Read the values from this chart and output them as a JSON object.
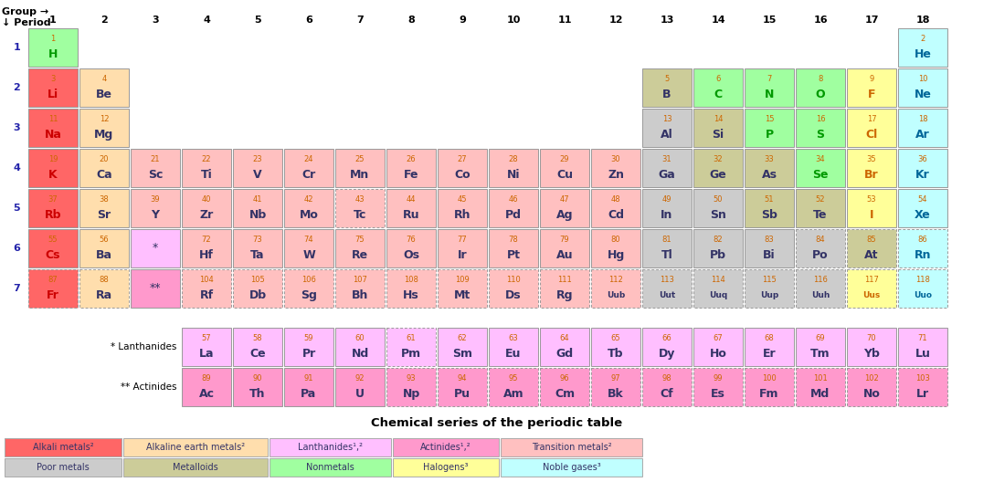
{
  "bg_color": "#ffffff",
  "title": "Chemical series of the periodic table",
  "elements": [
    {
      "num": 1,
      "sym": "H",
      "group": 1,
      "period": 1,
      "series": "nonmetal"
    },
    {
      "num": 2,
      "sym": "He",
      "group": 18,
      "period": 1,
      "series": "noble"
    },
    {
      "num": 3,
      "sym": "Li",
      "group": 1,
      "period": 2,
      "series": "alkali"
    },
    {
      "num": 4,
      "sym": "Be",
      "group": 2,
      "period": 2,
      "series": "alkaline"
    },
    {
      "num": 5,
      "sym": "B",
      "group": 13,
      "period": 2,
      "series": "metalloid"
    },
    {
      "num": 6,
      "sym": "C",
      "group": 14,
      "period": 2,
      "series": "nonmetal"
    },
    {
      "num": 7,
      "sym": "N",
      "group": 15,
      "period": 2,
      "series": "nonmetal"
    },
    {
      "num": 8,
      "sym": "O",
      "group": 16,
      "period": 2,
      "series": "nonmetal"
    },
    {
      "num": 9,
      "sym": "F",
      "group": 17,
      "period": 2,
      "series": "halogen"
    },
    {
      "num": 10,
      "sym": "Ne",
      "group": 18,
      "period": 2,
      "series": "noble"
    },
    {
      "num": 11,
      "sym": "Na",
      "group": 1,
      "period": 3,
      "series": "alkali"
    },
    {
      "num": 12,
      "sym": "Mg",
      "group": 2,
      "period": 3,
      "series": "alkaline"
    },
    {
      "num": 13,
      "sym": "Al",
      "group": 13,
      "period": 3,
      "series": "poor_metal"
    },
    {
      "num": 14,
      "sym": "Si",
      "group": 14,
      "period": 3,
      "series": "metalloid"
    },
    {
      "num": 15,
      "sym": "P",
      "group": 15,
      "period": 3,
      "series": "nonmetal"
    },
    {
      "num": 16,
      "sym": "S",
      "group": 16,
      "period": 3,
      "series": "nonmetal"
    },
    {
      "num": 17,
      "sym": "Cl",
      "group": 17,
      "period": 3,
      "series": "halogen"
    },
    {
      "num": 18,
      "sym": "Ar",
      "group": 18,
      "period": 3,
      "series": "noble"
    },
    {
      "num": 19,
      "sym": "K",
      "group": 1,
      "period": 4,
      "series": "alkali"
    },
    {
      "num": 20,
      "sym": "Ca",
      "group": 2,
      "period": 4,
      "series": "alkaline"
    },
    {
      "num": 21,
      "sym": "Sc",
      "group": 3,
      "period": 4,
      "series": "transition"
    },
    {
      "num": 22,
      "sym": "Ti",
      "group": 4,
      "period": 4,
      "series": "transition"
    },
    {
      "num": 23,
      "sym": "V",
      "group": 5,
      "period": 4,
      "series": "transition"
    },
    {
      "num": 24,
      "sym": "Cr",
      "group": 6,
      "period": 4,
      "series": "transition"
    },
    {
      "num": 25,
      "sym": "Mn",
      "group": 7,
      "period": 4,
      "series": "transition"
    },
    {
      "num": 26,
      "sym": "Fe",
      "group": 8,
      "period": 4,
      "series": "transition"
    },
    {
      "num": 27,
      "sym": "Co",
      "group": 9,
      "period": 4,
      "series": "transition"
    },
    {
      "num": 28,
      "sym": "Ni",
      "group": 10,
      "period": 4,
      "series": "transition"
    },
    {
      "num": 29,
      "sym": "Cu",
      "group": 11,
      "period": 4,
      "series": "transition"
    },
    {
      "num": 30,
      "sym": "Zn",
      "group": 12,
      "period": 4,
      "series": "transition"
    },
    {
      "num": 31,
      "sym": "Ga",
      "group": 13,
      "period": 4,
      "series": "poor_metal"
    },
    {
      "num": 32,
      "sym": "Ge",
      "group": 14,
      "period": 4,
      "series": "metalloid"
    },
    {
      "num": 33,
      "sym": "As",
      "group": 15,
      "period": 4,
      "series": "metalloid"
    },
    {
      "num": 34,
      "sym": "Se",
      "group": 16,
      "period": 4,
      "series": "nonmetal"
    },
    {
      "num": 35,
      "sym": "Br",
      "group": 17,
      "period": 4,
      "series": "halogen"
    },
    {
      "num": 36,
      "sym": "Kr",
      "group": 18,
      "period": 4,
      "series": "noble"
    },
    {
      "num": 37,
      "sym": "Rb",
      "group": 1,
      "period": 5,
      "series": "alkali"
    },
    {
      "num": 38,
      "sym": "Sr",
      "group": 2,
      "period": 5,
      "series": "alkaline"
    },
    {
      "num": 39,
      "sym": "Y",
      "group": 3,
      "period": 5,
      "series": "transition"
    },
    {
      "num": 40,
      "sym": "Zr",
      "group": 4,
      "period": 5,
      "series": "transition"
    },
    {
      "num": 41,
      "sym": "Nb",
      "group": 5,
      "period": 5,
      "series": "transition"
    },
    {
      "num": 42,
      "sym": "Mo",
      "group": 6,
      "period": 5,
      "series": "transition"
    },
    {
      "num": 43,
      "sym": "Tc",
      "group": 7,
      "period": 5,
      "series": "transition"
    },
    {
      "num": 44,
      "sym": "Ru",
      "group": 8,
      "period": 5,
      "series": "transition"
    },
    {
      "num": 45,
      "sym": "Rh",
      "group": 9,
      "period": 5,
      "series": "transition"
    },
    {
      "num": 46,
      "sym": "Pd",
      "group": 10,
      "period": 5,
      "series": "transition"
    },
    {
      "num": 47,
      "sym": "Ag",
      "group": 11,
      "period": 5,
      "series": "transition"
    },
    {
      "num": 48,
      "sym": "Cd",
      "group": 12,
      "period": 5,
      "series": "transition"
    },
    {
      "num": 49,
      "sym": "In",
      "group": 13,
      "period": 5,
      "series": "poor_metal"
    },
    {
      "num": 50,
      "sym": "Sn",
      "group": 14,
      "period": 5,
      "series": "poor_metal"
    },
    {
      "num": 51,
      "sym": "Sb",
      "group": 15,
      "period": 5,
      "series": "metalloid"
    },
    {
      "num": 52,
      "sym": "Te",
      "group": 16,
      "period": 5,
      "series": "metalloid"
    },
    {
      "num": 53,
      "sym": "I",
      "group": 17,
      "period": 5,
      "series": "halogen"
    },
    {
      "num": 54,
      "sym": "Xe",
      "group": 18,
      "period": 5,
      "series": "noble"
    },
    {
      "num": 55,
      "sym": "Cs",
      "group": 1,
      "period": 6,
      "series": "alkali"
    },
    {
      "num": 56,
      "sym": "Ba",
      "group": 2,
      "period": 6,
      "series": "alkaline"
    },
    {
      "num": 72,
      "sym": "Hf",
      "group": 4,
      "period": 6,
      "series": "transition"
    },
    {
      "num": 73,
      "sym": "Ta",
      "group": 5,
      "period": 6,
      "series": "transition"
    },
    {
      "num": 74,
      "sym": "W",
      "group": 6,
      "period": 6,
      "series": "transition"
    },
    {
      "num": 75,
      "sym": "Re",
      "group": 7,
      "period": 6,
      "series": "transition"
    },
    {
      "num": 76,
      "sym": "Os",
      "group": 8,
      "period": 6,
      "series": "transition"
    },
    {
      "num": 77,
      "sym": "Ir",
      "group": 9,
      "period": 6,
      "series": "transition"
    },
    {
      "num": 78,
      "sym": "Pt",
      "group": 10,
      "period": 6,
      "series": "transition"
    },
    {
      "num": 79,
      "sym": "Au",
      "group": 11,
      "period": 6,
      "series": "transition"
    },
    {
      "num": 80,
      "sym": "Hg",
      "group": 12,
      "period": 6,
      "series": "transition"
    },
    {
      "num": 81,
      "sym": "Tl",
      "group": 13,
      "period": 6,
      "series": "poor_metal"
    },
    {
      "num": 82,
      "sym": "Pb",
      "group": 14,
      "period": 6,
      "series": "poor_metal"
    },
    {
      "num": 83,
      "sym": "Bi",
      "group": 15,
      "period": 6,
      "series": "poor_metal"
    },
    {
      "num": 84,
      "sym": "Po",
      "group": 16,
      "period": 6,
      "series": "poor_metal"
    },
    {
      "num": 85,
      "sym": "At",
      "group": 17,
      "period": 6,
      "series": "metalloid"
    },
    {
      "num": 86,
      "sym": "Rn",
      "group": 18,
      "period": 6,
      "series": "noble"
    },
    {
      "num": 87,
      "sym": "Fr",
      "group": 1,
      "period": 7,
      "series": "alkali"
    },
    {
      "num": 88,
      "sym": "Ra",
      "group": 2,
      "period": 7,
      "series": "alkaline"
    },
    {
      "num": 104,
      "sym": "Rf",
      "group": 4,
      "period": 7,
      "series": "transition"
    },
    {
      "num": 105,
      "sym": "Db",
      "group": 5,
      "period": 7,
      "series": "transition"
    },
    {
      "num": 106,
      "sym": "Sg",
      "group": 6,
      "period": 7,
      "series": "transition"
    },
    {
      "num": 107,
      "sym": "Bh",
      "group": 7,
      "period": 7,
      "series": "transition"
    },
    {
      "num": 108,
      "sym": "Hs",
      "group": 8,
      "period": 7,
      "series": "transition"
    },
    {
      "num": 109,
      "sym": "Mt",
      "group": 9,
      "period": 7,
      "series": "transition"
    },
    {
      "num": 110,
      "sym": "Ds",
      "group": 10,
      "period": 7,
      "series": "transition"
    },
    {
      "num": 111,
      "sym": "Rg",
      "group": 11,
      "period": 7,
      "series": "transition"
    },
    {
      "num": 112,
      "sym": "Uub",
      "group": 12,
      "period": 7,
      "series": "transition"
    },
    {
      "num": 113,
      "sym": "Uut",
      "group": 13,
      "period": 7,
      "series": "poor_metal"
    },
    {
      "num": 114,
      "sym": "Uuq",
      "group": 14,
      "period": 7,
      "series": "poor_metal"
    },
    {
      "num": 115,
      "sym": "Uup",
      "group": 15,
      "period": 7,
      "series": "poor_metal"
    },
    {
      "num": 116,
      "sym": "Uuh",
      "group": 16,
      "period": 7,
      "series": "poor_metal"
    },
    {
      "num": 117,
      "sym": "Uus",
      "group": 17,
      "period": 7,
      "series": "halogen"
    },
    {
      "num": 118,
      "sym": "Uuo",
      "group": 18,
      "period": 7,
      "series": "noble"
    },
    {
      "num": 57,
      "sym": "La",
      "group": 4,
      "period": 9,
      "series": "lanthanide"
    },
    {
      "num": 58,
      "sym": "Ce",
      "group": 5,
      "period": 9,
      "series": "lanthanide"
    },
    {
      "num": 59,
      "sym": "Pr",
      "group": 6,
      "period": 9,
      "series": "lanthanide"
    },
    {
      "num": 60,
      "sym": "Nd",
      "group": 7,
      "period": 9,
      "series": "lanthanide"
    },
    {
      "num": 61,
      "sym": "Pm",
      "group": 8,
      "period": 9,
      "series": "lanthanide"
    },
    {
      "num": 62,
      "sym": "Sm",
      "group": 9,
      "period": 9,
      "series": "lanthanide"
    },
    {
      "num": 63,
      "sym": "Eu",
      "group": 10,
      "period": 9,
      "series": "lanthanide"
    },
    {
      "num": 64,
      "sym": "Gd",
      "group": 11,
      "period": 9,
      "series": "lanthanide"
    },
    {
      "num": 65,
      "sym": "Tb",
      "group": 12,
      "period": 9,
      "series": "lanthanide"
    },
    {
      "num": 66,
      "sym": "Dy",
      "group": 13,
      "period": 9,
      "series": "lanthanide"
    },
    {
      "num": 67,
      "sym": "Ho",
      "group": 14,
      "period": 9,
      "series": "lanthanide"
    },
    {
      "num": 68,
      "sym": "Er",
      "group": 15,
      "period": 9,
      "series": "lanthanide"
    },
    {
      "num": 69,
      "sym": "Tm",
      "group": 16,
      "period": 9,
      "series": "lanthanide"
    },
    {
      "num": 70,
      "sym": "Yb",
      "group": 17,
      "period": 9,
      "series": "lanthanide"
    },
    {
      "num": 71,
      "sym": "Lu",
      "group": 18,
      "period": 9,
      "series": "lanthanide"
    },
    {
      "num": 89,
      "sym": "Ac",
      "group": 4,
      "period": 10,
      "series": "actinide"
    },
    {
      "num": 90,
      "sym": "Th",
      "group": 5,
      "period": 10,
      "series": "actinide"
    },
    {
      "num": 91,
      "sym": "Pa",
      "group": 6,
      "period": 10,
      "series": "actinide"
    },
    {
      "num": 92,
      "sym": "U",
      "group": 7,
      "period": 10,
      "series": "actinide"
    },
    {
      "num": 93,
      "sym": "Np",
      "group": 8,
      "period": 10,
      "series": "actinide"
    },
    {
      "num": 94,
      "sym": "Pu",
      "group": 9,
      "period": 10,
      "series": "actinide"
    },
    {
      "num": 95,
      "sym": "Am",
      "group": 10,
      "period": 10,
      "series": "actinide"
    },
    {
      "num": 96,
      "sym": "Cm",
      "group": 11,
      "period": 10,
      "series": "actinide"
    },
    {
      "num": 97,
      "sym": "Bk",
      "group": 12,
      "period": 10,
      "series": "actinide"
    },
    {
      "num": 98,
      "sym": "Cf",
      "group": 13,
      "period": 10,
      "series": "actinide"
    },
    {
      "num": 99,
      "sym": "Es",
      "group": 14,
      "period": 10,
      "series": "actinide"
    },
    {
      "num": 100,
      "sym": "Fm",
      "group": 15,
      "period": 10,
      "series": "actinide"
    },
    {
      "num": 101,
      "sym": "Md",
      "group": 16,
      "period": 10,
      "series": "actinide"
    },
    {
      "num": 102,
      "sym": "No",
      "group": 17,
      "period": 10,
      "series": "actinide"
    },
    {
      "num": 103,
      "sym": "Lr",
      "group": 18,
      "period": 10,
      "series": "actinide"
    }
  ],
  "series_colors": {
    "alkali": "#ff6666",
    "alkaline": "#ffdead",
    "lanthanide": "#ffbfff",
    "actinide": "#ff99cc",
    "transition": "#ffc0c0",
    "poor_metal": "#cccccc",
    "metalloid": "#cccc99",
    "nonmetal": "#a0ffa0",
    "halogen": "#ffff99",
    "noble": "#c0ffff"
  },
  "sym_color_map": {
    "alkali": "#cc0000",
    "alkaline": "#333366",
    "lanthanide": "#333366",
    "actinide": "#333366",
    "transition": "#333366",
    "poor_metal": "#333366",
    "metalloid": "#333366",
    "nonmetal": "#009900",
    "halogen": "#cc6600",
    "noble": "#006699"
  },
  "dashed_elements": [
    43,
    61,
    84,
    85,
    86,
    87,
    88,
    93,
    94,
    95,
    96,
    97,
    98,
    99,
    100,
    101,
    102,
    103,
    104,
    105,
    106,
    107,
    108,
    109,
    110,
    111,
    112,
    113,
    114,
    115,
    116,
    117,
    118
  ],
  "legend_items": [
    {
      "label": "Alkali metals²",
      "color": "#ff6666",
      "row": 0,
      "col": 0
    },
    {
      "label": "Alkaline earth metals²",
      "color": "#ffdead",
      "row": 0,
      "col": 1
    },
    {
      "label": "Lanthanides¹,²",
      "color": "#ffbfff",
      "row": 0,
      "col": 2
    },
    {
      "label": "Actinides¹,²",
      "color": "#ff99cc",
      "row": 0,
      "col": 3
    },
    {
      "label": "Transition metals²",
      "color": "#ffc0c0",
      "row": 0,
      "col": 4
    },
    {
      "label": "Poor metals",
      "color": "#cccccc",
      "row": 1,
      "col": 0
    },
    {
      "label": "Metalloids",
      "color": "#cccc99",
      "row": 1,
      "col": 1
    },
    {
      "label": "Nonmetals",
      "color": "#a0ffa0",
      "row": 1,
      "col": 2
    },
    {
      "label": "Halogens³",
      "color": "#ffff99",
      "row": 1,
      "col": 3
    },
    {
      "label": "Noble gases³",
      "color": "#c0ffff",
      "row": 1,
      "col": 4
    }
  ]
}
